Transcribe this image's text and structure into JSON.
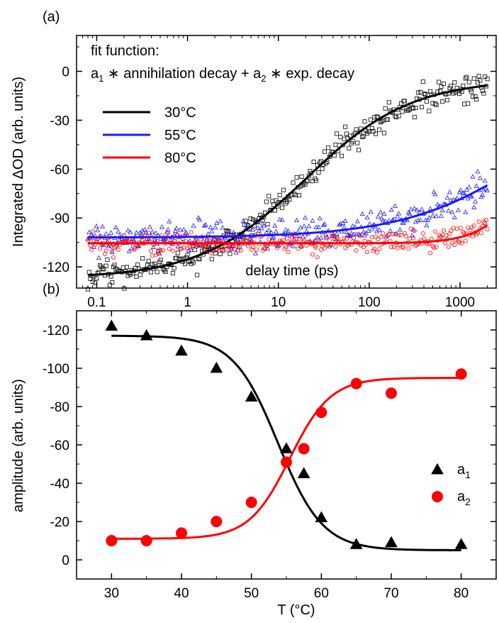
{
  "chart_data": [
    {
      "panel_label": "(a)",
      "type": "scatter",
      "x_scale": "log",
      "xlim": [
        0.06,
        2500
      ],
      "ylim": [
        -133,
        22
      ],
      "ylabel": "Integrated ΔOD (arb. units)",
      "xlabel_inside": "delay time (ps)",
      "x_ticks": [
        0.1,
        1,
        10,
        100,
        1000
      ],
      "x_tick_labels": [
        "0.1",
        "1",
        "10",
        "100",
        "1000"
      ],
      "y_ticks": [
        0,
        -30,
        -60,
        -90,
        -120
      ],
      "y_tick_labels": [
        "0",
        "-30",
        "-60",
        "-90",
        "-120"
      ],
      "annotation_line1": "fit function:",
      "annotation_line2": "a1 ∗ annihilation decay + a2 ∗ exp. decay",
      "legend_placement": "upper-left",
      "series": [
        {
          "name": "30°C",
          "color": "#000000",
          "marker": "square",
          "fit": {
            "low": -127,
            "high": -5,
            "x0": 20,
            "slope": 0.75
          }
        },
        {
          "name": "55°C",
          "color": "#1a1aff",
          "marker": "triangle",
          "fit": {
            "low": -102,
            "high": 0,
            "x0": 7000,
            "slope": 0.62
          }
        },
        {
          "name": "80°C",
          "color": "#ff0000",
          "marker": "circle",
          "fit": {
            "low": -105.5,
            "high": 0,
            "x0": 7000,
            "slope": 1.7
          }
        }
      ]
    },
    {
      "panel_label": "(b)",
      "type": "scatter",
      "xlim": [
        25,
        85
      ],
      "ylim": [
        10,
        -130
      ],
      "xlabel": "T (°C)",
      "ylabel": "amplitude (arb. units)",
      "x_ticks": [
        30,
        40,
        50,
        60,
        70,
        80
      ],
      "x_tick_labels": [
        "30",
        "40",
        "50",
        "60",
        "70",
        "80"
      ],
      "y_ticks": [
        0,
        -20,
        -40,
        -60,
        -80,
        -100,
        -120
      ],
      "y_tick_labels": [
        "0",
        "-20",
        "-40",
        "-60",
        "-80",
        "-100",
        "-120"
      ],
      "legend_placement": "right",
      "series": [
        {
          "name": "a1",
          "color": "#000000",
          "marker": "triangle",
          "x": [
            30,
            35,
            40,
            45,
            50,
            55,
            57.5,
            60,
            65,
            70,
            80
          ],
          "y": [
            -122,
            -117,
            -109,
            -100,
            -85,
            -58,
            -45,
            -22,
            -8,
            -9,
            -8
          ],
          "fit": {
            "start": -117,
            "end": -5,
            "center": 53.8,
            "width": 3.2
          }
        },
        {
          "name": "a2",
          "color": "#ff0000",
          "marker": "circle",
          "x": [
            30,
            35,
            40,
            45,
            50,
            55,
            57.5,
            60,
            65,
            70,
            80
          ],
          "y": [
            -10,
            -10,
            -14,
            -20,
            -30,
            -51,
            -58,
            -77,
            -92,
            -87,
            -97
          ],
          "fit": {
            "start": -11,
            "end": -95,
            "center": 55.5,
            "width": 2.9
          }
        }
      ]
    }
  ]
}
